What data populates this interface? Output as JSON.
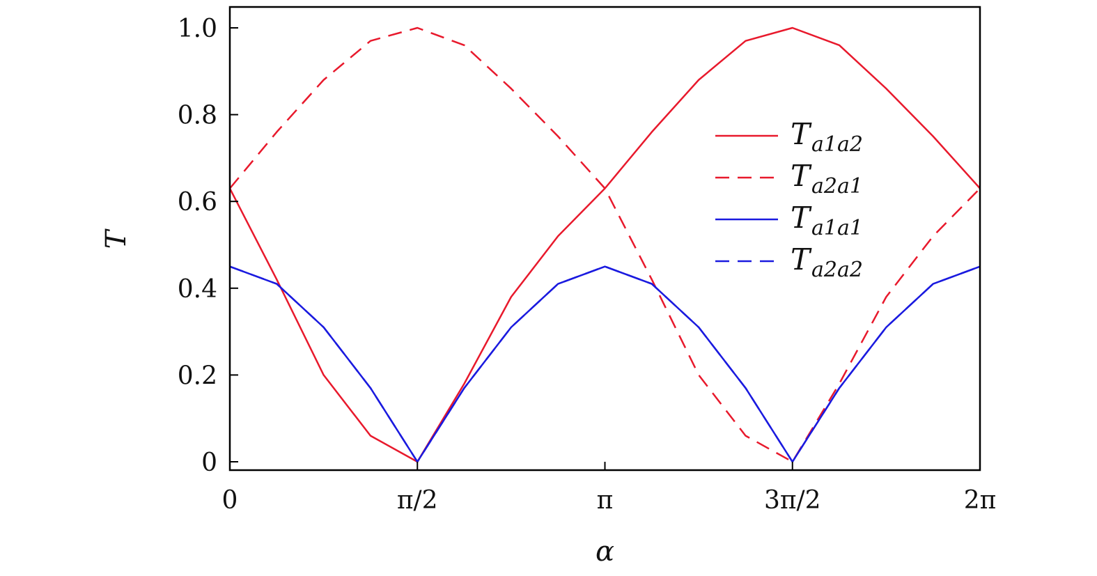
{
  "chart_data": {
    "type": "line",
    "title": "",
    "xlabel": "α",
    "ylabel": "T",
    "xlim": [
      0,
      6.2832
    ],
    "ylim": [
      0,
      1.05
    ],
    "x_ticks": [
      {
        "value": 0,
        "label": "0"
      },
      {
        "value": 1.5708,
        "label": "π/2"
      },
      {
        "value": 3.1416,
        "label": "π"
      },
      {
        "value": 4.7124,
        "label": "3π/2"
      },
      {
        "value": 6.2832,
        "label": "2π"
      }
    ],
    "y_ticks": [
      {
        "value": 0,
        "label": "0"
      },
      {
        "value": 0.2,
        "label": "0.2"
      },
      {
        "value": 0.4,
        "label": "0.4"
      },
      {
        "value": 0.6,
        "label": "0.6"
      },
      {
        "value": 0.8,
        "label": "0.8"
      },
      {
        "value": 1.0,
        "label": "1.0"
      }
    ],
    "grid": false,
    "legend_position": "right",
    "x": [
      0,
      0.3927,
      0.7854,
      1.1781,
      1.5708,
      1.9635,
      2.3562,
      2.7489,
      3.1416,
      3.5343,
      3.927,
      4.3197,
      4.7124,
      5.1051,
      5.4978,
      5.8905,
      6.2832
    ],
    "series": [
      {
        "name": "T_{a1a2}",
        "label_main": "T",
        "label_sub": "a1a2",
        "color": "#e8192c",
        "dash": "solid",
        "values": [
          0.63,
          0.42,
          0.2,
          0.06,
          0.0,
          0.18,
          0.38,
          0.52,
          0.63,
          0.76,
          0.88,
          0.97,
          1.0,
          0.96,
          0.86,
          0.75,
          0.63
        ]
      },
      {
        "name": "T_{a2a1}",
        "label_main": "T",
        "label_sub": "a2a1",
        "color": "#e8192c",
        "dash": "dashed",
        "values": [
          0.63,
          0.76,
          0.88,
          0.97,
          1.0,
          0.96,
          0.86,
          0.75,
          0.63,
          0.42,
          0.2,
          0.06,
          0.0,
          0.18,
          0.38,
          0.52,
          0.63
        ]
      },
      {
        "name": "T_{a1a1}",
        "label_main": "T",
        "label_sub": "a1a1",
        "color": "#1a1adf",
        "dash": "solid",
        "values": [
          0.45,
          0.41,
          0.31,
          0.17,
          0.0,
          0.17,
          0.31,
          0.41,
          0.45,
          0.41,
          0.31,
          0.17,
          0.0,
          0.17,
          0.31,
          0.41,
          0.45
        ]
      },
      {
        "name": "T_{a2a2}",
        "label_main": "T",
        "label_sub": "a2a2",
        "color": "#1a1adf",
        "dash": "dashed",
        "values": [
          0.45,
          0.41,
          0.31,
          0.17,
          0.0,
          0.17,
          0.31,
          0.41,
          0.45,
          0.41,
          0.31,
          0.17,
          0.0,
          0.17,
          0.31,
          0.41,
          0.45
        ]
      }
    ]
  }
}
